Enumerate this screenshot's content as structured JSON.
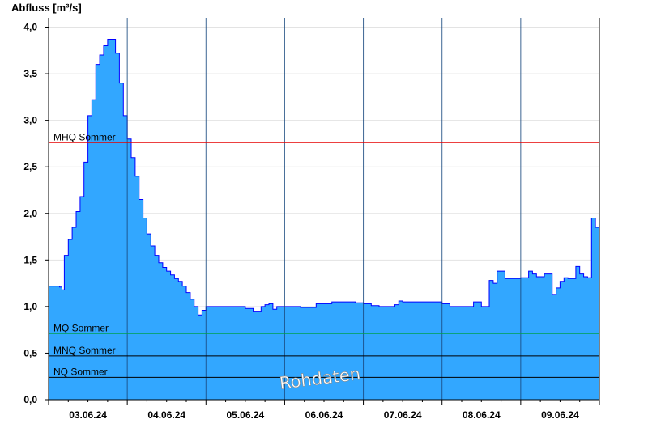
{
  "chart_data": {
    "type": "area",
    "ylabel": "Abfluss [m³/s]",
    "ylim": [
      0,
      4.1
    ],
    "yticks": [
      "0,0",
      "0,5",
      "1,0",
      "1,5",
      "2,0",
      "2,5",
      "3,0",
      "3,5",
      "4,0"
    ],
    "xlim_days": [
      0,
      7
    ],
    "xtick_labels": [
      "03.06.24",
      "04.06.24",
      "05.06.24",
      "06.06.24",
      "07.06.24",
      "08.06.24",
      "09.06.24"
    ],
    "grid": true,
    "series": [
      {
        "x_days": [
          0.0,
          0.14,
          0.17,
          0.2,
          0.25,
          0.3,
          0.35,
          0.4,
          0.45,
          0.5,
          0.55,
          0.6,
          0.65,
          0.7,
          0.75,
          0.8,
          0.85,
          0.9,
          0.95,
          1.0,
          1.05,
          1.1,
          1.15,
          1.2,
          1.25,
          1.3,
          1.35,
          1.4,
          1.45,
          1.5,
          1.55,
          1.6,
          1.65,
          1.7,
          1.75,
          1.8,
          1.85,
          1.9,
          1.95,
          2.0,
          2.1,
          2.2,
          2.3,
          2.4,
          2.5,
          2.6,
          2.7,
          2.75,
          2.8,
          2.85,
          2.9,
          3.0,
          3.2,
          3.4,
          3.6,
          3.65,
          3.7,
          3.75,
          3.8,
          3.9,
          4.0,
          4.1,
          4.2,
          4.3,
          4.4,
          4.45,
          4.5,
          4.6,
          4.8,
          5.0,
          5.1,
          5.2,
          5.4,
          5.5,
          5.6,
          5.65,
          5.7,
          5.8,
          6.0,
          6.1,
          6.15,
          6.2,
          6.3,
          6.4,
          6.45,
          6.5,
          6.55,
          6.6,
          6.65,
          6.7,
          6.75,
          6.8,
          6.85,
          6.9,
          6.95,
          7.0
        ],
        "y": [
          1.22,
          1.21,
          1.18,
          1.55,
          1.72,
          1.85,
          2.02,
          2.18,
          2.55,
          3.05,
          3.22,
          3.6,
          3.7,
          3.8,
          3.87,
          3.87,
          3.72,
          3.4,
          3.05,
          2.8,
          2.6,
          2.4,
          2.15,
          1.95,
          1.78,
          1.65,
          1.55,
          1.47,
          1.42,
          1.38,
          1.34,
          1.3,
          1.27,
          1.22,
          1.15,
          1.08,
          1.0,
          0.91,
          0.96,
          1.0,
          1.0,
          1.0,
          1.0,
          1.0,
          0.98,
          0.95,
          1.0,
          1.02,
          1.03,
          0.97,
          1.0,
          1.0,
          0.99,
          1.03,
          1.05,
          1.05,
          1.05,
          1.05,
          1.05,
          1.04,
          1.03,
          1.01,
          1.0,
          1.0,
          1.02,
          1.06,
          1.05,
          1.05,
          1.05,
          1.03,
          1.0,
          1.0,
          1.05,
          1.0,
          1.28,
          1.25,
          1.38,
          1.3,
          1.31,
          1.38,
          1.35,
          1.32,
          1.35,
          1.13,
          1.2,
          1.27,
          1.31,
          1.3,
          1.3,
          1.43,
          1.35,
          1.32,
          1.31,
          1.95,
          1.85,
          1.82
        ]
      }
    ],
    "reference_lines": [
      {
        "name": "MHQ Sommer",
        "value": 2.76,
        "color": "#e60000"
      },
      {
        "name": "MQ Sommer",
        "value": 0.71,
        "color": "#00a050"
      },
      {
        "name": "MNQ Sommer",
        "value": 0.47,
        "color": "#000000"
      },
      {
        "name": "NQ Sommer",
        "value": 0.24,
        "color": "#000000"
      }
    ],
    "watermark": "Rohdaten",
    "fill_color": "#32a7ff",
    "line_color": "#0000ff"
  }
}
